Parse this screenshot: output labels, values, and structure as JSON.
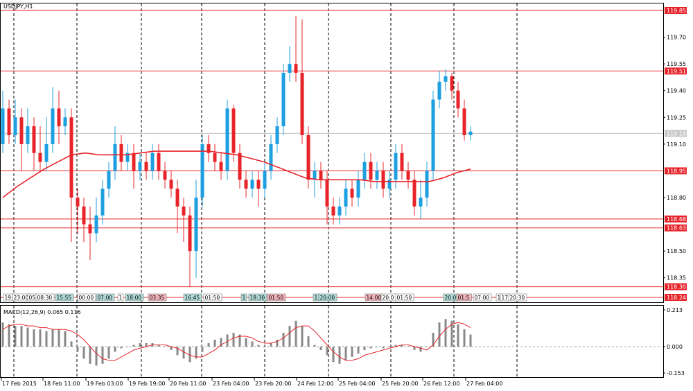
{
  "chart_data": [
    {
      "type": "candlestick",
      "symbol": "USDJPY,H1",
      "ylim": [
        118.24,
        119.85
      ],
      "price_ticks": [
        "119.70",
        "119.55",
        "119.40",
        "119.25",
        "119.10",
        "118.80",
        "118.50",
        "118.35"
      ],
      "current_price": "119.16",
      "horizontal_levels": [
        {
          "label": "119.85",
          "value": 119.85
        },
        {
          "label": "119.51",
          "value": 119.51
        },
        {
          "label": "118.95",
          "value": 118.95
        },
        {
          "label": "118.68",
          "value": 118.68
        },
        {
          "label": "118.63",
          "value": 118.63
        },
        {
          "label": "118.30",
          "value": 118.3
        },
        {
          "label": "118.24",
          "value": 118.24
        }
      ],
      "x_ticks": [
        "17 Feb 2015",
        "18 Feb 11:00",
        "19 Feb 03:00",
        "19 Feb 19:00",
        "20 Feb 11:00",
        "23 Feb 04:00",
        "23 Feb 20:00",
        "24 Feb 12:00",
        "25 Feb 04:00",
        "25 Feb 20:00",
        "26 Feb 12:00",
        "27 Feb 04:00"
      ],
      "event_tags": [
        {
          "label": "19:",
          "bg": "#ffffff"
        },
        {
          "label": "23:00",
          "bg": "#ffffff"
        },
        {
          "label": "05",
          "bg": "#ffffff"
        },
        {
          "label": "08:30",
          "bg": "#ffffff"
        },
        {
          "label": "15:55",
          "bg": "#b2dfdb"
        },
        {
          "label": "00:00",
          "bg": "#ffffff"
        },
        {
          "label": "07:00",
          "bg": "#b2dfdb"
        },
        {
          "label": "1",
          "bg": "#ffffff"
        },
        {
          "label": "18:00",
          "bg": "#b2dfdb"
        },
        {
          "label": "03:35",
          "bg": "#f4b6bd"
        },
        {
          "label": "16:45",
          "bg": "#b2dfdb"
        },
        {
          "label": "01:50",
          "bg": "#ffffff"
        },
        {
          "label": "1",
          "bg": "#b2dfdb"
        },
        {
          "label": "18:30",
          "bg": "#b2dfdb"
        },
        {
          "label": "01:50",
          "bg": "#f4b6bd"
        },
        {
          "label": "1",
          "bg": "#b2dfdb"
        },
        {
          "label": "20:00",
          "bg": "#b2dfdb"
        },
        {
          "label": "14:00",
          "bg": "#f4b6bd"
        },
        {
          "label": "20:0",
          "bg": "#ffffff"
        },
        {
          "label": "01:50",
          "bg": "#ffffff"
        },
        {
          "label": "20:0",
          "bg": "#b2dfdb"
        },
        {
          "label": "01:5",
          "bg": "#f4b6bd"
        },
        {
          "label": "07:00",
          "bg": "#ffffff"
        },
        {
          "label": "1",
          "bg": "#ffffff"
        },
        {
          "label": "17",
          "bg": "#ffffff"
        },
        {
          "label": "20:30",
          "bg": "#ffffff"
        }
      ],
      "colors": {
        "bull": "#1e9fe0",
        "bear": "#e8242b",
        "ma": "#e8242b",
        "level": "#e8242b",
        "vgrid": "#000000"
      },
      "moving_average": [
        118.8,
        118.86,
        118.91,
        118.96,
        119.0,
        119.04,
        119.05,
        119.04,
        119.04,
        119.04,
        119.05,
        119.06,
        119.06,
        119.06,
        119.06,
        119.06,
        119.05,
        119.04,
        119.02,
        119.0,
        118.97,
        118.94,
        118.91,
        118.9,
        118.9,
        118.9,
        118.9,
        118.89,
        118.89,
        118.89,
        118.89,
        118.89,
        118.91,
        118.94,
        118.96
      ],
      "candles": [
        [
          119.1,
          119.3,
          119.4,
          119.05
        ],
        [
          119.3,
          119.15,
          119.35,
          119.1
        ],
        [
          119.15,
          119.25,
          119.35,
          119.1
        ],
        [
          119.25,
          119.1,
          119.3,
          118.95
        ],
        [
          119.1,
          119.2,
          119.3,
          119.05
        ],
        [
          119.2,
          119.05,
          119.25,
          118.95
        ],
        [
          119.05,
          119.0,
          119.2,
          118.95
        ],
        [
          119.0,
          119.1,
          119.25,
          118.95
        ],
        [
          119.1,
          119.3,
          119.42,
          119.05
        ],
        [
          119.3,
          119.2,
          119.4,
          119.1
        ],
        [
          119.2,
          119.25,
          119.3,
          119.15
        ],
        [
          119.25,
          118.8,
          119.3,
          118.55
        ],
        [
          118.8,
          118.75,
          118.85,
          118.6
        ],
        [
          118.75,
          118.65,
          118.8,
          118.55
        ],
        [
          118.65,
          118.6,
          118.75,
          118.45
        ],
        [
          118.6,
          118.7,
          118.8,
          118.55
        ],
        [
          118.7,
          118.85,
          118.9,
          118.65
        ],
        [
          118.85,
          118.95,
          119.0,
          118.8
        ],
        [
          118.95,
          119.1,
          119.2,
          118.9
        ],
        [
          119.1,
          119.0,
          119.15,
          118.95
        ],
        [
          119.0,
          119.05,
          119.1,
          118.95
        ],
        [
          119.05,
          118.95,
          119.1,
          118.85
        ],
        [
          118.95,
          119.0,
          119.05,
          118.9
        ],
        [
          119.0,
          118.95,
          119.05,
          118.9
        ],
        [
          118.95,
          119.05,
          119.1,
          118.9
        ],
        [
          119.05,
          118.95,
          119.1,
          118.9
        ],
        [
          118.95,
          118.9,
          119.0,
          118.85
        ],
        [
          118.9,
          118.85,
          118.95,
          118.8
        ],
        [
          118.85,
          118.75,
          118.9,
          118.6
        ],
        [
          118.75,
          118.7,
          118.8,
          118.55
        ],
        [
          118.7,
          118.5,
          118.75,
          118.3
        ],
        [
          118.5,
          118.8,
          118.9,
          118.35
        ],
        [
          118.8,
          119.1,
          119.15,
          118.75
        ],
        [
          119.1,
          119.05,
          119.15,
          119.0
        ],
        [
          119.05,
          119.0,
          119.1,
          118.95
        ],
        [
          119.0,
          118.95,
          119.05,
          118.9
        ],
        [
          118.95,
          119.3,
          119.35,
          118.9
        ],
        [
          119.3,
          119.05,
          119.32,
          119.0
        ],
        [
          119.05,
          118.9,
          119.1,
          118.85
        ],
        [
          118.9,
          118.85,
          118.95,
          118.8
        ],
        [
          118.85,
          118.9,
          118.95,
          118.8
        ],
        [
          118.9,
          118.85,
          118.95,
          118.75
        ],
        [
          118.85,
          118.95,
          119.0,
          118.8
        ],
        [
          118.95,
          119.1,
          119.15,
          118.9
        ],
        [
          119.1,
          119.2,
          119.25,
          119.05
        ],
        [
          119.2,
          119.5,
          119.55,
          119.15
        ],
        [
          119.5,
          119.55,
          119.65,
          119.45
        ],
        [
          119.55,
          119.5,
          119.82,
          119.45
        ],
        [
          119.5,
          119.15,
          119.8,
          119.1
        ],
        [
          119.15,
          118.9,
          119.2,
          118.85
        ],
        [
          118.9,
          118.95,
          119.0,
          118.8
        ],
        [
          118.95,
          118.9,
          119.0,
          118.85
        ],
        [
          118.9,
          118.75,
          118.95,
          118.65
        ],
        [
          118.75,
          118.7,
          118.8,
          118.65
        ],
        [
          118.7,
          118.75,
          118.8,
          118.65
        ],
        [
          118.75,
          118.85,
          118.9,
          118.7
        ],
        [
          118.85,
          118.8,
          118.9,
          118.75
        ],
        [
          118.8,
          118.9,
          118.95,
          118.75
        ],
        [
          118.9,
          119.0,
          119.05,
          118.85
        ],
        [
          119.0,
          118.9,
          119.05,
          118.85
        ],
        [
          118.9,
          118.95,
          119.0,
          118.85
        ],
        [
          118.95,
          118.85,
          119.0,
          118.8
        ],
        [
          118.85,
          118.9,
          118.95,
          118.8
        ],
        [
          118.9,
          119.05,
          119.1,
          118.85
        ],
        [
          119.05,
          118.95,
          119.1,
          118.9
        ],
        [
          118.95,
          118.9,
          119.0,
          118.85
        ],
        [
          118.9,
          118.75,
          118.95,
          118.7
        ],
        [
          118.75,
          118.8,
          118.9,
          118.68
        ],
        [
          118.8,
          118.95,
          119.0,
          118.75
        ],
        [
          118.95,
          119.35,
          119.4,
          118.9
        ],
        [
          119.35,
          119.45,
          119.51,
          119.3
        ],
        [
          119.45,
          119.48,
          119.52,
          119.4
        ],
        [
          119.48,
          119.4,
          119.5,
          119.35
        ],
        [
          119.4,
          119.3,
          119.45,
          119.25
        ],
        [
          119.3,
          119.15,
          119.35,
          119.12
        ],
        [
          119.15,
          119.17,
          119.2,
          119.12
        ]
      ],
      "macd": {
        "label": "MACD(12,26,9) 0.065 0.116",
        "ticks": [
          "0.213",
          "0.000",
          "-0.153"
        ],
        "ylim": [
          -0.153,
          0.213
        ],
        "hist": [
          0.14,
          0.13,
          0.12,
          0.12,
          0.11,
          0.1,
          0.1,
          0.09,
          0.1,
          0.1,
          0.09,
          0.03,
          -0.03,
          -0.07,
          -0.1,
          -0.11,
          -0.1,
          -0.07,
          -0.03,
          -0.01,
          0.0,
          0.01,
          0.02,
          0.02,
          0.02,
          0.01,
          0.0,
          -0.02,
          -0.05,
          -0.07,
          -0.09,
          -0.07,
          -0.03,
          0.02,
          0.04,
          0.05,
          0.07,
          0.08,
          0.07,
          0.05,
          0.03,
          0.01,
          0.0,
          0.02,
          0.04,
          0.08,
          0.12,
          0.15,
          0.12,
          0.06,
          0.01,
          -0.02,
          -0.05,
          -0.09,
          -0.1,
          -0.08,
          -0.06,
          -0.04,
          -0.02,
          -0.01,
          0.0,
          -0.01,
          0.0,
          0.01,
          0.01,
          0.0,
          -0.02,
          -0.03,
          0.0,
          0.08,
          0.14,
          0.16,
          0.15,
          0.13,
          0.1,
          0.07
        ],
        "signal": [
          0.1,
          0.12,
          0.13,
          0.13,
          0.12,
          0.12,
          0.11,
          0.11,
          0.1,
          0.1,
          0.1,
          0.09,
          0.07,
          0.04,
          0.0,
          -0.04,
          -0.07,
          -0.08,
          -0.08,
          -0.06,
          -0.04,
          -0.02,
          -0.01,
          0.0,
          0.01,
          0.01,
          0.01,
          0.0,
          -0.01,
          -0.03,
          -0.05,
          -0.06,
          -0.06,
          -0.04,
          -0.02,
          0.01,
          0.03,
          0.05,
          0.06,
          0.06,
          0.05,
          0.03,
          0.02,
          0.02,
          0.03,
          0.05,
          0.08,
          0.11,
          0.12,
          0.12,
          0.09,
          0.05,
          0.01,
          -0.03,
          -0.06,
          -0.08,
          -0.08,
          -0.07,
          -0.05,
          -0.04,
          -0.03,
          -0.02,
          -0.01,
          0.0,
          0.01,
          0.01,
          0.0,
          -0.01,
          -0.02,
          0.01,
          0.06,
          0.1,
          0.13,
          0.14,
          0.13,
          0.11
        ]
      }
    }
  ]
}
